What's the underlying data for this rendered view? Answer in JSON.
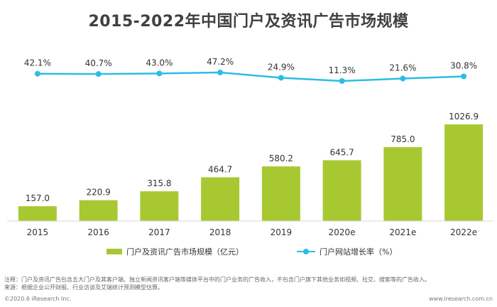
{
  "chart_data": {
    "type": "bar+line",
    "title": "2015-2022年中国门户及资讯广告市场规模",
    "categories": [
      "2015",
      "2016",
      "2017",
      "2018",
      "2019",
      "2020e",
      "2021e",
      "2022e"
    ],
    "series": [
      {
        "name": "门户及资讯广告市场规模（亿元）",
        "type": "bar",
        "color": "#a8c832",
        "values": [
          157.0,
          220.9,
          315.8,
          464.7,
          580.2,
          645.7,
          785.0,
          1026.9
        ],
        "labels": [
          "157.0",
          "220.9",
          "315.8",
          "464.7",
          "580.2",
          "645.7",
          "785.0",
          "1026.9"
        ]
      },
      {
        "name": "门户网站增长率（%）",
        "type": "line",
        "color": "#2cbde6",
        "values": [
          42.1,
          40.7,
          43.0,
          47.2,
          24.9,
          11.3,
          21.6,
          30.8
        ],
        "labels": [
          "42.1%",
          "40.7%",
          "43.0%",
          "47.2%",
          "24.9%",
          "11.3%",
          "21.6%",
          "30.8%"
        ]
      }
    ],
    "grid": false
  },
  "notes": [
    "注释：门户及资讯广告包含五大门户及其客户端、独立新闻资讯客户端等媒体平台中的门户业务的广告收入，不包含门户旗下其他业务如视频、社交、搜索等的广告收入。",
    "来源：根据企业公开财报、行业访谈及艾瑞统计预测模型估算。"
  ],
  "footer": {
    "left": "©2020.6 iResearch Inc.",
    "right": "www.iresearch.com.cn"
  }
}
